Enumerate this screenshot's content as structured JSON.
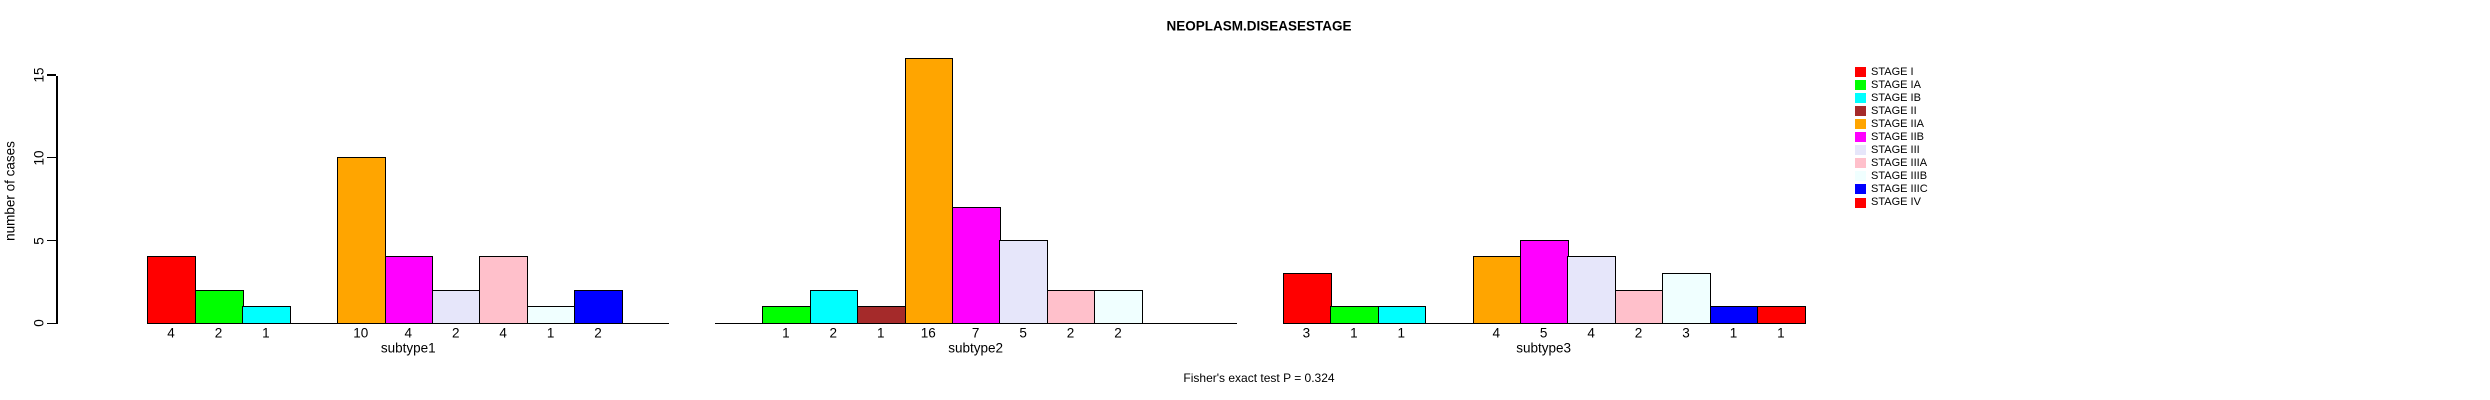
{
  "chart_data": {
    "type": "bar",
    "title": "NEOPLASM.DISEASESTAGE",
    "ylabel": "number of cases",
    "ylim": [
      0,
      15
    ],
    "yticks": [
      0,
      5,
      10,
      15
    ],
    "grid": false,
    "legend_position": "right",
    "stages": [
      {
        "name": "STAGE I",
        "color": "#FF0000"
      },
      {
        "name": "STAGE IA",
        "color": "#00FF00"
      },
      {
        "name": "STAGE IB",
        "color": "#00FFFF"
      },
      {
        "name": "STAGE II",
        "color": "#A52A2A"
      },
      {
        "name": "STAGE IIA",
        "color": "#FFA500"
      },
      {
        "name": "STAGE IIB",
        "color": "#FF00FF"
      },
      {
        "name": "STAGE III",
        "color": "#E6E6FA"
      },
      {
        "name": "STAGE IIIA",
        "color": "#FFC0CB"
      },
      {
        "name": "STAGE IIIB",
        "color": "#F0FFFF"
      },
      {
        "name": "STAGE IIIC",
        "color": "#0000FF"
      },
      {
        "name": "STAGE IV",
        "color": "#FF0000"
      }
    ],
    "groups": [
      {
        "label": "subtype1",
        "values": [
          4,
          2,
          1,
          0,
          10,
          4,
          2,
          4,
          1,
          2,
          0
        ]
      },
      {
        "label": "subtype2",
        "values": [
          0,
          1,
          2,
          1,
          16,
          7,
          5,
          2,
          2,
          0,
          0
        ]
      },
      {
        "label": "subtype3",
        "values": [
          3,
          1,
          1,
          0,
          4,
          5,
          4,
          2,
          3,
          1,
          1
        ]
      }
    ],
    "annotation": "Fisher's exact test P = 0.324"
  }
}
